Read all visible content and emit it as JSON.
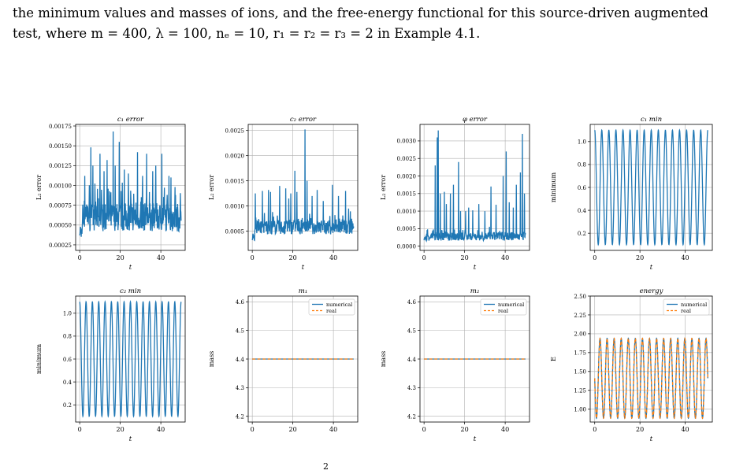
{
  "caption": {
    "line1": "the minimum values and masses of ions, and the free-energy functional for this source-driven augmented",
    "line2": "test, where  m = 400,  λ = 100,  nₑ = 10,  r₁ = r₂ = r₃ = 2 in Example 4.1."
  },
  "page_number_fragment": "2",
  "colors": {
    "series1": "#1f77b4",
    "series2": "#ff7f0e",
    "grid": "#b0b0b0"
  },
  "chart_data": [
    {
      "type": "line",
      "title": "c₁ error",
      "xlabel": "t",
      "ylabel": "L₂ error",
      "xlim": [
        -2,
        52
      ],
      "ylim": [
        0.00018,
        0.00177
      ],
      "xticks": [
        0,
        20,
        40
      ],
      "yticks": [
        0.00025,
        0.0005,
        0.00075,
        0.001,
        0.00125,
        0.0015,
        0.00175
      ],
      "yticklabels": [
        "0.00025",
        "0.00050",
        "0.00075",
        "0.00100",
        "0.00125",
        "0.00150",
        "0.00175"
      ],
      "grid": true,
      "series": [
        {
          "kind": "noisy",
          "t_range": [
            0,
            50
          ],
          "n_points": 400,
          "base": 0.0006,
          "spread": 0.00018,
          "peaks": [
            [
              2.5,
              0.00112
            ],
            [
              5.5,
              0.00148
            ],
            [
              6.5,
              0.00125
            ],
            [
              10,
              0.0014
            ],
            [
              12,
              0.00118
            ],
            [
              13.5,
              0.00132
            ],
            [
              16.5,
              0.00168
            ],
            [
              17.5,
              0.00125
            ],
            [
              19.5,
              0.00155
            ],
            [
              22,
              0.0012
            ],
            [
              24,
              0.00115
            ],
            [
              28.5,
              0.00142
            ],
            [
              31,
              0.00112
            ],
            [
              33,
              0.0014
            ],
            [
              36,
              0.00118
            ],
            [
              37.5,
              0.00125
            ],
            [
              40.5,
              0.0014
            ],
            [
              44,
              0.00112
            ],
            [
              45,
              0.0011
            ],
            [
              47,
              0.00098
            ]
          ]
        }
      ]
    },
    {
      "type": "line",
      "title": "c₂ error",
      "xlabel": "t",
      "ylabel": "L₂ error",
      "xlim": [
        -2,
        52
      ],
      "ylim": [
        0.00012,
        0.00262
      ],
      "xticks": [
        0,
        20,
        40
      ],
      "yticks": [
        0.0005,
        0.001,
        0.0015,
        0.002,
        0.0025
      ],
      "yticklabels": [
        "0.0005",
        "0.0010",
        "0.0015",
        "0.0020",
        "0.0025"
      ],
      "grid": true,
      "series": [
        {
          "kind": "noisy",
          "t_range": [
            0,
            50
          ],
          "n_points": 400,
          "base": 0.00058,
          "spread": 0.00014,
          "peaks": [
            [
              1.5,
              0.00125
            ],
            [
              5,
              0.0013
            ],
            [
              8,
              0.00132
            ],
            [
              9,
              0.00128
            ],
            [
              13.5,
              0.0014
            ],
            [
              16.5,
              0.00135
            ],
            [
              18,
              0.00115
            ],
            [
              19,
              0.00125
            ],
            [
              21,
              0.0017
            ],
            [
              22,
              0.00128
            ],
            [
              26,
              0.00252
            ],
            [
              27,
              0.0015
            ],
            [
              29.5,
              0.0012
            ],
            [
              32,
              0.00132
            ],
            [
              35,
              0.0011
            ],
            [
              39.5,
              0.00142
            ],
            [
              42.5,
              0.0012
            ],
            [
              46,
              0.0013
            ],
            [
              47.5,
              0.00095
            ]
          ]
        }
      ]
    },
    {
      "type": "line",
      "title": "φ error",
      "xlabel": "t",
      "ylabel": "L₂ error",
      "xlim": [
        -2,
        52
      ],
      "ylim": [
        -0.00012,
        0.00347
      ],
      "xticks": [
        0,
        20,
        40
      ],
      "yticks": [
        0,
        0.0005,
        0.001,
        0.0015,
        0.002,
        0.0025,
        0.003
      ],
      "yticklabels": [
        "0.0000",
        "0.0005",
        "0.0010",
        "0.0015",
        "0.0020",
        "0.0025",
        "0.0030"
      ],
      "grid": true,
      "series": [
        {
          "kind": "noisy",
          "t_range": [
            0,
            50
          ],
          "n_points": 400,
          "base": 0.00028,
          "spread": 0.00012,
          "peaks": [
            [
              5.5,
              0.0023
            ],
            [
              6.5,
              0.0031
            ],
            [
              7,
              0.0033
            ],
            [
              8,
              0.0015
            ],
            [
              10,
              0.00155
            ],
            [
              11,
              0.0012
            ],
            [
              13,
              0.0015
            ],
            [
              14.5,
              0.00175
            ],
            [
              17,
              0.0024
            ],
            [
              18,
              0.001
            ],
            [
              20.5,
              0.001
            ],
            [
              22,
              0.0011
            ],
            [
              24,
              0.00102
            ],
            [
              27,
              0.0012
            ],
            [
              30,
              0.001
            ],
            [
              33,
              0.0017
            ],
            [
              35.5,
              0.00118
            ],
            [
              39,
              0.002
            ],
            [
              40.5,
              0.0027
            ],
            [
              42,
              0.00125
            ],
            [
              44,
              0.0011
            ],
            [
              45.5,
              0.00175
            ],
            [
              47.5,
              0.0021
            ],
            [
              48.5,
              0.0032
            ],
            [
              49.5,
              0.0015
            ]
          ]
        }
      ]
    },
    {
      "type": "line",
      "title": "c₁ min",
      "xlabel": "t",
      "ylabel": "minimum",
      "xlim": [
        -2,
        52
      ],
      "ylim": [
        0.05,
        1.15
      ],
      "xticks": [
        0,
        20,
        40
      ],
      "yticks": [
        0.2,
        0.4,
        0.6,
        0.8,
        1.0
      ],
      "yticklabels": [
        "0.2",
        "0.4",
        "0.6",
        "0.8",
        "1.0"
      ],
      "grid": true,
      "series": [
        {
          "kind": "periodic",
          "t_range": [
            0,
            50
          ],
          "n_points": 900,
          "min": 0.1,
          "max": 1.1,
          "period": 3.125
        }
      ]
    },
    {
      "type": "line",
      "title": "c₂ min",
      "xlabel": "t",
      "ylabel": "minimum",
      "xlim": [
        -2,
        52
      ],
      "ylim": [
        0.05,
        1.15
      ],
      "xticks": [
        0,
        20,
        40
      ],
      "yticks": [
        0.2,
        0.4,
        0.6,
        0.8,
        1.0
      ],
      "yticklabels": [
        "0.2",
        "0.4",
        "0.6",
        "0.8",
        "1.0"
      ],
      "grid": true,
      "series": [
        {
          "kind": "periodic",
          "t_range": [
            0,
            50
          ],
          "n_points": 900,
          "min": 0.1,
          "max": 1.1,
          "period": 3.125
        }
      ]
    },
    {
      "type": "line",
      "title": "m₁",
      "xlabel": "",
      "ylabel": "mass",
      "xlim": [
        -2,
        52
      ],
      "ylim": [
        4.18,
        4.62
      ],
      "xticks": [
        0,
        20,
        40
      ],
      "yticks": [
        4.2,
        4.3,
        4.4,
        4.5,
        4.6
      ],
      "yticklabels": [
        "4.2",
        "4.3",
        "4.4",
        "4.5",
        "4.6"
      ],
      "grid": true,
      "legend": "top-right",
      "series": [
        {
          "name": "numerical",
          "kind": "constant",
          "t_range": [
            0,
            50
          ],
          "value": 4.4
        },
        {
          "name": "real",
          "kind": "constant",
          "t_range": [
            0,
            50
          ],
          "value": 4.4,
          "dashed": true
        }
      ]
    },
    {
      "type": "line",
      "title": "m₂",
      "xlabel": "t",
      "ylabel": "mass",
      "xlim": [
        -2,
        52
      ],
      "ylim": [
        4.18,
        4.62
      ],
      "xticks": [
        0,
        20,
        40
      ],
      "yticks": [
        4.2,
        4.3,
        4.4,
        4.5,
        4.6
      ],
      "yticklabels": [
        "4.2",
        "4.3",
        "4.4",
        "4.5",
        "4.6"
      ],
      "grid": true,
      "legend": "top-right",
      "series": [
        {
          "name": "numerical",
          "kind": "constant",
          "t_range": [
            0,
            50
          ],
          "value": 4.4
        },
        {
          "name": "real",
          "kind": "constant",
          "t_range": [
            0,
            50
          ],
          "value": 4.4,
          "dashed": true
        }
      ]
    },
    {
      "type": "line",
      "title": "energy",
      "xlabel": "t",
      "ylabel": "E",
      "xlim": [
        -2,
        52
      ],
      "ylim": [
        0.83,
        2.5
      ],
      "xticks": [
        0,
        20,
        40
      ],
      "yticks": [
        1.0,
        1.25,
        1.5,
        1.75,
        2.0,
        2.25,
        2.5
      ],
      "yticklabels": [
        "1.00",
        "1.25",
        "1.50",
        "1.75",
        "2.00",
        "2.25",
        "2.50"
      ],
      "grid": true,
      "legend": "top-right",
      "series": [
        {
          "name": "numerical",
          "kind": "periodic_shifted",
          "t_range": [
            0,
            50
          ],
          "n_points": 900,
          "min": 0.88,
          "max": 1.94,
          "period": 3.125
        },
        {
          "name": "real",
          "kind": "periodic_shifted",
          "t_range": [
            0,
            50
          ],
          "n_points": 900,
          "min": 0.88,
          "max": 1.94,
          "period": 3.125,
          "dashed": true
        }
      ]
    }
  ]
}
